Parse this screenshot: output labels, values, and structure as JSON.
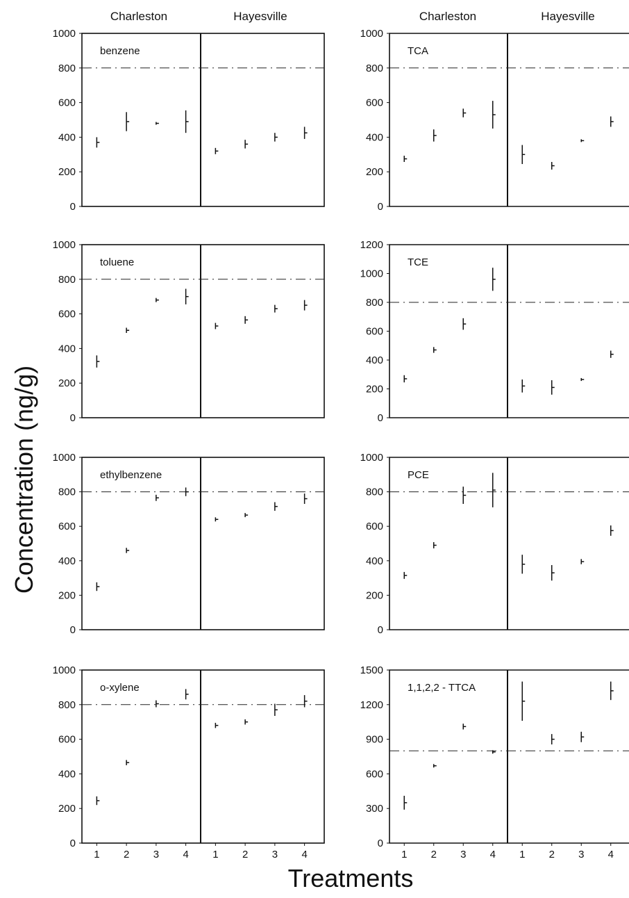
{
  "figure": {
    "ylabel": "Concentration (ng/g)",
    "xlabel": "Treatments",
    "column_headers": [
      "Charleston",
      "Hayesville",
      "Charleston",
      "Hayesville"
    ]
  },
  "chart_data": [
    {
      "type": "scatter",
      "panel": "benzene",
      "ylim": [
        0,
        1000
      ],
      "yticks": [
        0,
        200,
        400,
        600,
        800,
        1000
      ],
      "reference_line": 800,
      "x_ticks": [
        "1",
        "2",
        "3",
        "4"
      ],
      "series": [
        {
          "name": "Charleston",
          "x": [
            1,
            2,
            3,
            4
          ],
          "y": [
            370,
            490,
            480,
            490
          ],
          "err": [
            30,
            55,
            8,
            65
          ]
        },
        {
          "name": "Hayesville",
          "x": [
            1,
            2,
            3,
            4
          ],
          "y": [
            320,
            360,
            400,
            425
          ],
          "err": [
            18,
            25,
            25,
            35
          ]
        }
      ]
    },
    {
      "type": "scatter",
      "panel": "toluene",
      "ylim": [
        0,
        1000
      ],
      "yticks": [
        0,
        200,
        400,
        600,
        800,
        1000
      ],
      "reference_line": 800,
      "x_ticks": [
        "1",
        "2",
        "3",
        "4"
      ],
      "series": [
        {
          "name": "Charleston",
          "x": [
            1,
            2,
            3,
            4
          ],
          "y": [
            325,
            505,
            680,
            700
          ],
          "err": [
            35,
            15,
            12,
            45
          ]
        },
        {
          "name": "Hayesville",
          "x": [
            1,
            2,
            3,
            4
          ],
          "y": [
            530,
            565,
            630,
            650
          ],
          "err": [
            18,
            22,
            22,
            30
          ]
        }
      ]
    },
    {
      "type": "scatter",
      "panel": "ethylbenzene",
      "ylim": [
        0,
        1000
      ],
      "yticks": [
        0,
        200,
        400,
        600,
        800,
        1000
      ],
      "reference_line": 800,
      "x_ticks": [
        "1",
        "2",
        "3",
        "4"
      ],
      "series": [
        {
          "name": "Charleston",
          "x": [
            1,
            2,
            3,
            4
          ],
          "y": [
            250,
            460,
            765,
            800
          ],
          "err": [
            25,
            15,
            18,
            25
          ]
        },
        {
          "name": "Hayesville",
          "x": [
            1,
            2,
            3,
            4
          ],
          "y": [
            640,
            665,
            715,
            760
          ],
          "err": [
            12,
            12,
            25,
            30
          ]
        }
      ]
    },
    {
      "type": "scatter",
      "panel": "o-xylene",
      "ylim": [
        0,
        1000
      ],
      "yticks": [
        0,
        200,
        400,
        600,
        800,
        1000
      ],
      "reference_line": 800,
      "x_ticks": [
        "1",
        "2",
        "3",
        "4"
      ],
      "series": [
        {
          "name": "Charleston",
          "x": [
            1,
            2,
            3,
            4
          ],
          "y": [
            245,
            465,
            805,
            860
          ],
          "err": [
            25,
            15,
            20,
            30
          ]
        },
        {
          "name": "Hayesville",
          "x": [
            1,
            2,
            3,
            4
          ],
          "y": [
            680,
            700,
            770,
            820
          ],
          "err": [
            15,
            15,
            35,
            35
          ]
        }
      ]
    },
    {
      "type": "scatter",
      "panel": "TCA",
      "ylim": [
        0,
        1000
      ],
      "yticks": [
        0,
        200,
        400,
        600,
        800,
        1000
      ],
      "reference_line": 800,
      "x_ticks": [
        "1",
        "2",
        "3",
        "4"
      ],
      "series": [
        {
          "name": "Charleston",
          "x": [
            1,
            2,
            3,
            4
          ],
          "y": [
            275,
            410,
            540,
            530
          ],
          "err": [
            18,
            35,
            25,
            80
          ]
        },
        {
          "name": "Hayesville",
          "x": [
            1,
            2,
            3,
            4
          ],
          "y": [
            300,
            235,
            380,
            490
          ],
          "err": [
            55,
            22,
            8,
            30
          ]
        }
      ]
    },
    {
      "type": "scatter",
      "panel": "TCE",
      "ylim": [
        0,
        1200
      ],
      "yticks": [
        0,
        200,
        400,
        600,
        800,
        1000,
        1200
      ],
      "reference_line": 800,
      "x_ticks": [
        "1",
        "2",
        "3",
        "4"
      ],
      "series": [
        {
          "name": "Charleston",
          "x": [
            1,
            2,
            3,
            4
          ],
          "y": [
            270,
            470,
            650,
            960
          ],
          "err": [
            25,
            20,
            40,
            80
          ]
        },
        {
          "name": "Hayesville",
          "x": [
            1,
            2,
            3,
            4
          ],
          "y": [
            220,
            210,
            265,
            440
          ],
          "err": [
            45,
            50,
            10,
            25
          ]
        }
      ]
    },
    {
      "type": "scatter",
      "panel": "PCE",
      "ylim": [
        0,
        1000
      ],
      "yticks": [
        0,
        200,
        400,
        600,
        800,
        1000
      ],
      "reference_line": 800,
      "x_ticks": [
        "1",
        "2",
        "3",
        "4"
      ],
      "series": [
        {
          "name": "Charleston",
          "x": [
            1,
            2,
            3,
            4
          ],
          "y": [
            315,
            490,
            780,
            810
          ],
          "err": [
            20,
            18,
            50,
            100
          ]
        },
        {
          "name": "Hayesville",
          "x": [
            1,
            2,
            3,
            4
          ],
          "y": [
            380,
            330,
            395,
            575
          ],
          "err": [
            55,
            45,
            15,
            30
          ]
        }
      ]
    },
    {
      "type": "scatter",
      "panel": "1,1,2,2 - TTCA",
      "ylim": [
        0,
        1500
      ],
      "yticks": [
        0,
        300,
        600,
        900,
        1200,
        1500
      ],
      "reference_line": 800,
      "x_ticks": [
        "1",
        "2",
        "3",
        "4"
      ],
      "series": [
        {
          "name": "Charleston",
          "x": [
            1,
            2,
            3,
            4
          ],
          "y": [
            350,
            670,
            1010,
            790
          ],
          "err": [
            60,
            15,
            25,
            15
          ]
        },
        {
          "name": "Hayesville",
          "x": [
            1,
            2,
            3,
            4
          ],
          "y": [
            1230,
            900,
            920,
            1320
          ],
          "err": [
            170,
            45,
            45,
            80
          ]
        }
      ]
    }
  ]
}
